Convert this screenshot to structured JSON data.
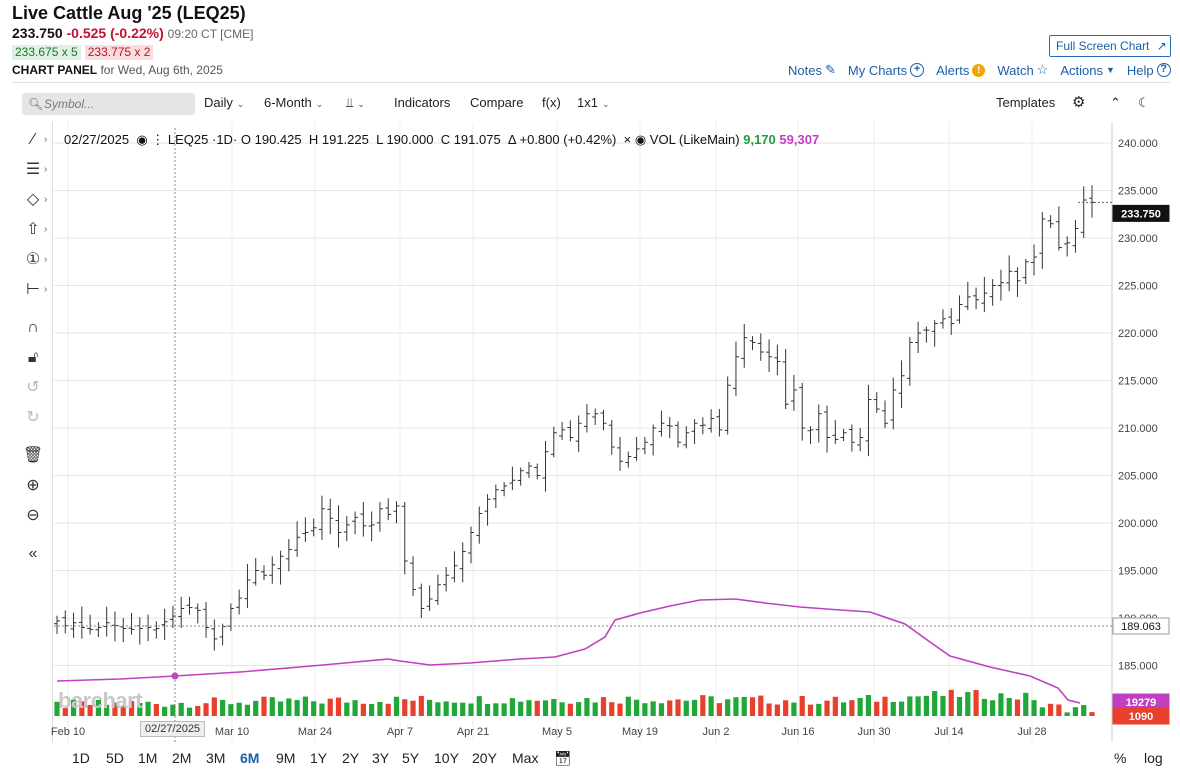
{
  "header": {
    "title": "Live Cattle Aug '25 (LEQ25)",
    "last": "233.750",
    "change": "-0.525 (-0.22%)",
    "time": "09:20 CT [CME]",
    "bid": "233.675 x 5",
    "ask": "233.775 x 2",
    "panel_label": "CHART PANEL",
    "panel_date": "for Wed, Aug 6th, 2025",
    "fullscreen": "Full Screen Chart"
  },
  "toplinks": [
    "Notes",
    "My Charts",
    "Alerts",
    "Watch",
    "Actions",
    "Help"
  ],
  "toolbar": {
    "symbol_placeholder": "Symbol...",
    "interval": "Daily",
    "range": "6-Month",
    "indicators": "Indicators",
    "compare": "Compare",
    "fx": "f(x)",
    "layout": "1x1",
    "templates": "Templates"
  },
  "legend": {
    "date": "02/27/2025",
    "symbol": "LEQ25 ·1D·",
    "open": "O 190.425",
    "high": "H 191.225",
    "low": "L 190.000",
    "close": "C 191.075",
    "change": "Δ +0.800 (+0.42%)",
    "vol_label": "VOL (LikeMain)",
    "vol_value": "9,170",
    "vol_avg": "59,307"
  },
  "crosshair_date": "02/27/2025",
  "watermark": "barchart",
  "ranges": [
    "1D",
    "5D",
    "1M",
    "2M",
    "3M",
    "6M",
    "9M",
    "1Y",
    "2Y",
    "3Y",
    "5Y",
    "10Y",
    "20Y",
    "Max"
  ],
  "active_range": "6M",
  "scale_buttons": [
    "%",
    "log"
  ],
  "chart_data": {
    "type": "bar",
    "title": "Live Cattle Aug '25 (LEQ25)",
    "x_tick_labels": [
      "Feb 10",
      "Mar 10",
      "Mar 24",
      "Apr 7",
      "Apr 21",
      "May 5",
      "May 19",
      "Jun 2",
      "Jun 16",
      "Jun 30",
      "Jul 14",
      "Jul 28"
    ],
    "y_tick_labels": [
      "240.000",
      "235.000",
      "230.000",
      "225.000",
      "220.000",
      "215.000",
      "210.000",
      "205.000",
      "200.000",
      "195.000",
      "190.000",
      "185.000"
    ],
    "ylim": [
      180.5,
      240.5
    ],
    "last_price_label": "233.750",
    "crosshair_price_label": "189.063",
    "volume_labels": [
      "19279",
      "1090"
    ],
    "grid": true,
    "colors": {
      "bars": "#333333",
      "ma": "#c040c0",
      "vol_up": "#21a638",
      "vol_down": "#e8402a"
    },
    "closes": [
      189.7,
      189.2,
      189.5,
      189.0,
      188.8,
      189.0,
      189.5,
      189.2,
      188.9,
      188.8,
      188.9,
      189.0,
      188.9,
      189.6,
      190.2,
      191.0,
      191.1,
      190.8,
      189.0,
      187.8,
      189.1,
      191.0,
      192.1,
      194.0,
      195.0,
      194.5,
      195.6,
      196.5,
      197.2,
      198.5,
      199.0,
      199.5,
      201.5,
      200.5,
      199.0,
      199.8,
      200.6,
      199.7,
      199.8,
      201.5,
      200.9,
      201.8,
      196.0,
      193.0,
      191.0,
      192.0,
      193.5,
      194.5,
      195.5,
      197.0,
      199.0,
      201.0,
      202.5,
      203.5,
      203.9,
      204.5,
      205.5,
      206.0,
      205.0,
      207.5,
      209.5,
      209.8,
      209.0,
      210.5,
      211.5,
      211.5,
      210.5,
      208.0,
      206.5,
      207.0,
      207.8,
      208.5,
      210.0,
      210.5,
      210.2,
      208.5,
      209.5,
      210.5,
      210.3,
      211.0,
      209.8,
      214.5,
      217.5,
      219.5,
      219.0,
      218.0,
      217.5,
      217.0,
      212.5,
      214.0,
      210.0,
      209.8,
      211.5,
      209.0,
      208.8,
      209.5,
      208.5,
      209.0,
      213.0,
      212.0,
      210.5,
      214.0,
      215.5,
      219.0,
      220.0,
      220.3,
      221.0,
      221.5,
      221.0,
      223.0,
      223.8,
      223.5,
      224.2,
      225.0,
      225.3,
      226.5,
      225.5,
      227.5,
      228.0,
      232.0,
      231.5,
      229.0,
      229.5,
      231.0,
      234.0,
      233.75
    ]
  }
}
